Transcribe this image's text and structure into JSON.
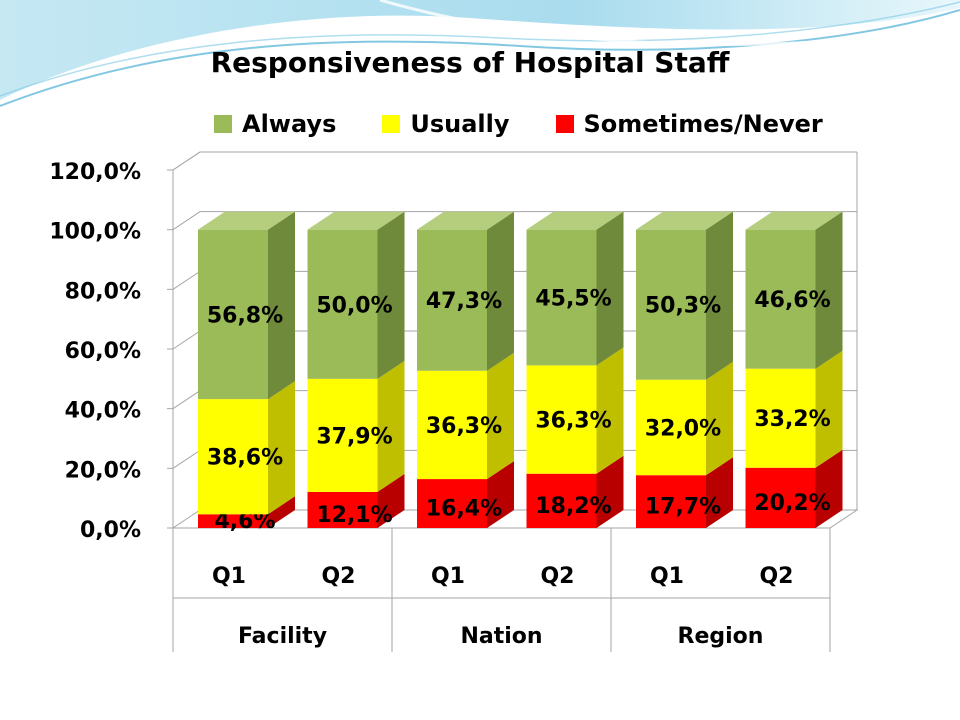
{
  "colors": {
    "always": "#9BBB59",
    "always_side": "#6E8A3A",
    "always_top": "#B4CE7E",
    "usually": "#FFFF00",
    "usually_side": "#BFBF00",
    "usually_top": "#FFFF80",
    "never": "#FF0000",
    "never_side": "#B80000",
    "never_top": "#FF6666",
    "grid": "#A6A6A6",
    "text": "#000000"
  },
  "chart_data": {
    "type": "bar",
    "stacked": true,
    "three_d": true,
    "title": "Responsiveness  of Hospital Staff",
    "categories": [
      "Q1",
      "Q2",
      "Q1",
      "Q2",
      "Q1",
      "Q2"
    ],
    "groups": [
      {
        "label": "Facility",
        "span": 2
      },
      {
        "label": "Nation",
        "span": 2
      },
      {
        "label": "Region",
        "span": 2
      }
    ],
    "series": [
      {
        "name": "Sometimes/Never",
        "key": "never",
        "values": [
          4.6,
          12.1,
          16.4,
          18.2,
          17.7,
          20.2
        ],
        "labels": [
          "4,6%",
          "12,1%",
          "16,4%",
          "18,2%",
          "17,7%",
          "20,2%"
        ]
      },
      {
        "name": "Usually",
        "key": "usually",
        "values": [
          38.6,
          37.9,
          36.3,
          36.3,
          32.0,
          33.2
        ],
        "labels": [
          "38,6%",
          "37,9%",
          "36,3%",
          "36,3%",
          "32,0%",
          "33,2%"
        ]
      },
      {
        "name": "Always",
        "key": "always",
        "values": [
          56.8,
          50.0,
          47.3,
          45.5,
          50.3,
          46.6
        ],
        "labels": [
          "56,8%",
          "50,0%",
          "47,3%",
          "45,5%",
          "50,3%",
          "46,6%"
        ]
      }
    ],
    "ylim": [
      0,
      120
    ],
    "yticks": [
      0,
      20,
      40,
      60,
      80,
      100,
      120
    ],
    "ytick_labels": [
      "0,0%",
      "20,0%",
      "40,0%",
      "60,0%",
      "80,0%",
      "100,0%",
      "120,0%"
    ],
    "grid": true,
    "legend": {
      "position": "top",
      "items": [
        {
          "label": "Always",
          "key": "always"
        },
        {
          "label": "Usually",
          "key": "usually"
        },
        {
          "label": "Sometimes/Never",
          "key": "never"
        }
      ]
    }
  }
}
